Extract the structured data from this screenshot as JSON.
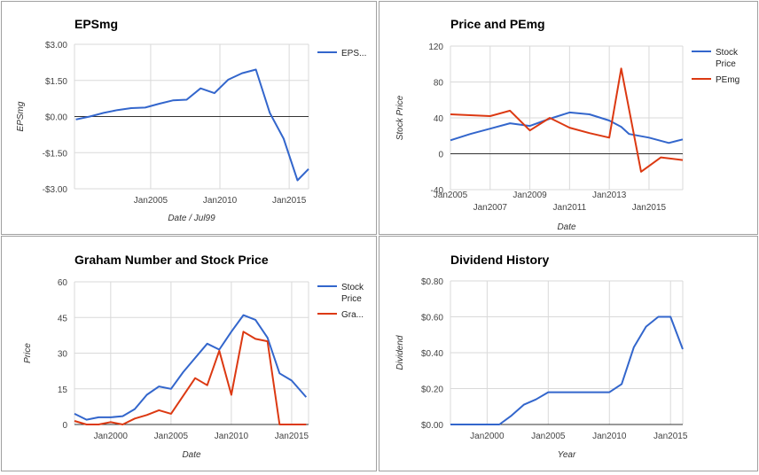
{
  "chart_data": [
    {
      "id": "eps",
      "type": "line",
      "title": "EPSmg",
      "xlabel": "Date / Jul99",
      "ylabel": "EPSmg",
      "xlim": [
        1999.5,
        2016.4
      ],
      "ylim": [
        -3.0,
        3.0
      ],
      "yticks": [
        -3.0,
        -1.5,
        0.0,
        1.5,
        3.0
      ],
      "ytick_labels": [
        "-$3.00",
        "-$1.50",
        "$0.00",
        "$1.50",
        "$3.00"
      ],
      "xticks": [
        2005,
        2010,
        2015
      ],
      "xtick_labels": [
        "Jan2005",
        "Jan2010",
        "Jan2015"
      ],
      "zero_line": true,
      "grid": true,
      "legend_position": "right",
      "series": [
        {
          "name": "EPS...",
          "color": "#3366cc",
          "points": [
            [
              1999.6,
              -0.12
            ],
            [
              2000.6,
              0.0
            ],
            [
              2001.6,
              0.15
            ],
            [
              2002.6,
              0.27
            ],
            [
              2003.6,
              0.35
            ],
            [
              2004.6,
              0.37
            ],
            [
              2005.6,
              0.53
            ],
            [
              2006.6,
              0.67
            ],
            [
              2007.6,
              0.7
            ],
            [
              2008.6,
              1.17
            ],
            [
              2009.6,
              0.97
            ],
            [
              2010.6,
              1.53
            ],
            [
              2011.6,
              1.8
            ],
            [
              2012.6,
              1.95
            ],
            [
              2013.6,
              0.15
            ],
            [
              2014.6,
              -0.92
            ],
            [
              2015.6,
              -2.65
            ],
            [
              2016.4,
              -2.18
            ]
          ]
        }
      ]
    },
    {
      "id": "price-pe",
      "type": "line",
      "title": "Price and PEmg",
      "xlabel": "Date",
      "ylabel": "Stock Price",
      "xlim": [
        2005.0,
        2016.7
      ],
      "ylim": [
        -40,
        120
      ],
      "yticks": [
        -40,
        0,
        40,
        80,
        120
      ],
      "ytick_labels": [
        "-40",
        "0",
        "40",
        "80",
        "120"
      ],
      "xticks_top": [
        2005,
        2009,
        2013
      ],
      "xtick_labels_top": [
        "Jan2005",
        "Jan2009",
        "Jan2013"
      ],
      "xticks_bottom": [
        2007,
        2011,
        2015
      ],
      "xtick_labels_bottom": [
        "Jan2007",
        "Jan2011",
        "Jan2015"
      ],
      "zero_line": true,
      "grid": true,
      "legend_position": "right",
      "series": [
        {
          "name": "Stock Price",
          "color": "#3366cc",
          "points": [
            [
              2005.0,
              15
            ],
            [
              2006.0,
              22
            ],
            [
              2007.0,
              28
            ],
            [
              2008.0,
              34
            ],
            [
              2009.0,
              31
            ],
            [
              2010.0,
              39
            ],
            [
              2011.0,
              46
            ],
            [
              2012.0,
              44
            ],
            [
              2013.0,
              37
            ],
            [
              2013.6,
              30
            ],
            [
              2014.0,
              22
            ],
            [
              2015.0,
              18
            ],
            [
              2016.0,
              12
            ],
            [
              2016.7,
              16
            ]
          ]
        },
        {
          "name": "PEmg",
          "color": "#dc3912",
          "points": [
            [
              2005.0,
              44
            ],
            [
              2006.0,
              43
            ],
            [
              2007.0,
              42
            ],
            [
              2008.0,
              48
            ],
            [
              2009.0,
              26
            ],
            [
              2010.0,
              40
            ],
            [
              2011.0,
              29
            ],
            [
              2012.0,
              23
            ],
            [
              2013.0,
              18
            ],
            [
              2013.6,
              95
            ],
            [
              2014.6,
              -20
            ],
            [
              2015.6,
              -4
            ],
            [
              2016.7,
              -7
            ]
          ]
        }
      ]
    },
    {
      "id": "graham",
      "type": "line",
      "title": "Graham Number and Stock Price",
      "xlabel": "Date",
      "ylabel": "Price",
      "xlim": [
        1997.0,
        2016.4
      ],
      "ylim": [
        0,
        60
      ],
      "yticks": [
        0,
        15,
        30,
        45,
        60
      ],
      "ytick_labels": [
        "0",
        "15",
        "30",
        "45",
        "60"
      ],
      "xticks": [
        2000,
        2005,
        2010,
        2015
      ],
      "xtick_labels": [
        "Jan2000",
        "Jan2005",
        "Jan2010",
        "Jan2015"
      ],
      "grid": true,
      "legend_position": "right",
      "series": [
        {
          "name": "Stock Price",
          "color": "#3366cc",
          "points": [
            [
              1997.0,
              4.5
            ],
            [
              1998.0,
              2
            ],
            [
              1999.0,
              3
            ],
            [
              2000.0,
              3
            ],
            [
              2001.0,
              3.5
            ],
            [
              2002.0,
              6.5
            ],
            [
              2003.0,
              12.5
            ],
            [
              2004.0,
              16
            ],
            [
              2005.0,
              15
            ],
            [
              2006.0,
              22
            ],
            [
              2007.0,
              28
            ],
            [
              2008.0,
              34
            ],
            [
              2009.0,
              31.5
            ],
            [
              2010.0,
              39
            ],
            [
              2011.0,
              46
            ],
            [
              2012.0,
              44
            ],
            [
              2013.0,
              36.5
            ],
            [
              2014.0,
              21.5
            ],
            [
              2015.0,
              18.5
            ],
            [
              2016.2,
              11.5
            ]
          ]
        },
        {
          "name": "Gra...",
          "color": "#dc3912",
          "points": [
            [
              1997.0,
              1.5
            ],
            [
              1998.0,
              0
            ],
            [
              1999.0,
              0
            ],
            [
              2000.0,
              1
            ],
            [
              2001.0,
              0
            ],
            [
              2002.0,
              2.5
            ],
            [
              2003.0,
              4
            ],
            [
              2004.0,
              6
            ],
            [
              2005.0,
              4.5
            ],
            [
              2006.0,
              12
            ],
            [
              2007.0,
              19.5
            ],
            [
              2008.0,
              16.5
            ],
            [
              2009.0,
              31
            ],
            [
              2010.0,
              12.5
            ],
            [
              2011.0,
              39
            ],
            [
              2012.0,
              36
            ],
            [
              2013.0,
              35
            ],
            [
              2014.0,
              0
            ],
            [
              2015.0,
              0
            ],
            [
              2016.2,
              0
            ]
          ]
        }
      ]
    },
    {
      "id": "dividend",
      "type": "line",
      "title": "Dividend History",
      "xlabel": "Year",
      "ylabel": "Dividend",
      "xlim": [
        1997.0,
        2016.0
      ],
      "ylim": [
        0.0,
        0.8
      ],
      "yticks": [
        0.0,
        0.2,
        0.4,
        0.6,
        0.8
      ],
      "ytick_labels": [
        "$0.00",
        "$0.20",
        "$0.40",
        "$0.60",
        "$0.80"
      ],
      "xticks": [
        2000,
        2005,
        2010,
        2015
      ],
      "xtick_labels": [
        "Jan2000",
        "Jan2005",
        "Jan2010",
        "Jan2015"
      ],
      "grid": true,
      "series": [
        {
          "name": "",
          "color": "#3366cc",
          "points": [
            [
              1997.0,
              0
            ],
            [
              2001.0,
              0
            ],
            [
              2002.0,
              0.05
            ],
            [
              2003.0,
              0.11
            ],
            [
              2004.0,
              0.14
            ],
            [
              2005.0,
              0.18
            ],
            [
              2006.0,
              0.18
            ],
            [
              2007.0,
              0.18
            ],
            [
              2008.0,
              0.18
            ],
            [
              2009.0,
              0.18
            ],
            [
              2010.0,
              0.18
            ],
            [
              2011.0,
              0.225
            ],
            [
              2012.0,
              0.43
            ],
            [
              2013.0,
              0.545
            ],
            [
              2014.0,
              0.6
            ],
            [
              2015.0,
              0.6
            ],
            [
              2016.0,
              0.42
            ]
          ]
        }
      ]
    }
  ]
}
